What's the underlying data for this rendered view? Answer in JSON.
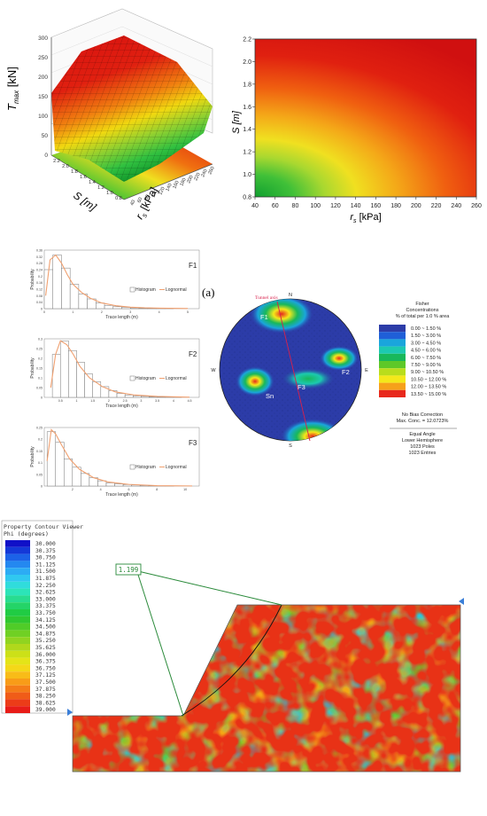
{
  "surface3d": {
    "zlabel": "T",
    "zlabel_sub": "max",
    "zlabel_unit": " [kN]",
    "xlabel": "r",
    "xlabel_sub": "s",
    "xlabel_unit": " [kPa]",
    "ylabel": "S [m]",
    "zticks": [
      "300",
      "250",
      "200",
      "150",
      "100",
      "50",
      "0"
    ],
    "xticks": [
      "40",
      "60",
      "80",
      "100",
      "120",
      "140",
      "160",
      "180",
      "200",
      "220",
      "240",
      "260"
    ],
    "yticks": [
      "2.2",
      "2.0",
      "1.8",
      "1.6",
      "1.4",
      "1.2",
      "1.0",
      "0.8"
    ]
  },
  "contour2d": {
    "xlabel": "r",
    "xlabel_sub": "s",
    "xlabel_unit": " [kPa]",
    "ylabel": "S [m]",
    "xticks": [
      "40",
      "60",
      "80",
      "100",
      "120",
      "140",
      "160",
      "180",
      "200",
      "220",
      "240",
      "260"
    ],
    "yticks": [
      "2.2",
      "2.0",
      "1.8",
      "1.6",
      "1.4",
      "1.2",
      "1.0",
      "0.8"
    ]
  },
  "histograms": [
    {
      "label": "F1",
      "ylabel": "Probability",
      "xlabel": "Trace length (m)",
      "yticks": [
        "0.36",
        "0.32",
        "0.28",
        "0.24",
        "0.2",
        "0.16",
        "0.12",
        "0.08",
        "0.04",
        "0"
      ],
      "xticks": [
        "0",
        "1",
        "2",
        "3",
        "4",
        "5"
      ],
      "legend_hist": "Histogram",
      "legend_line": "Lognormal"
    },
    {
      "label": "F2",
      "ylabel": "Probability",
      "xlabel": "Trace length (m)",
      "yticks": [
        "0.3",
        "0.25",
        "0.2",
        "0.15",
        "0.1",
        "0.05",
        "0"
      ],
      "xticks": [
        "0.5",
        "1",
        "1.5",
        "2",
        "2.5",
        "3",
        "3.5",
        "4",
        "4.5"
      ],
      "legend_hist": "Histogram",
      "legend_line": "Lognormal"
    },
    {
      "label": "F3",
      "ylabel": "Probability",
      "xlabel": "Trace length (m)",
      "yticks": [
        "0.25",
        "0.2",
        "0.15",
        "0.1",
        "0.05",
        "0"
      ],
      "xticks": [
        "2",
        "4",
        "6",
        "8",
        "10"
      ],
      "legend_hist": "Histogram",
      "legend_line": "Lognormal"
    }
  ],
  "stereonet": {
    "panel_label": "(a)",
    "tunnel_label": "Tunnel axis",
    "compass": {
      "n": "N",
      "e": "E",
      "s": "S",
      "w": "W"
    },
    "set_labels": [
      "F1",
      "F2",
      "F3",
      "Sn",
      "F1"
    ],
    "legend_title": [
      "Fisher",
      "Concentrations",
      "% of total per 1.0 % area"
    ],
    "legend_items": [
      {
        "label": "0.00 ~ 1.50 %",
        "color": "#2c3ca8"
      },
      {
        "label": "1.50 ~ 3.00 %",
        "color": "#1f5fd8"
      },
      {
        "label": "3.00 ~ 4.50 %",
        "color": "#1aa5dc"
      },
      {
        "label": "4.50 ~ 6.00 %",
        "color": "#1cc9b0"
      },
      {
        "label": "6.00 ~ 7.50 %",
        "color": "#18b85a"
      },
      {
        "label": "7.50 ~ 9.00 %",
        "color": "#5ec828"
      },
      {
        "label": "9.00 ~ 10.50 %",
        "color": "#b9dd1c"
      },
      {
        "label": "10.50 ~ 12.00 %",
        "color": "#f4e81a"
      },
      {
        "label": "12.00 ~ 13.50 %",
        "color": "#f6a11a"
      },
      {
        "label": "13.50 ~ 15.00 %",
        "color": "#e8281c"
      }
    ],
    "notes": [
      "No Bias Correction",
      "Max. Conc. = 12.0723%"
    ],
    "projection": [
      "Equal Angle",
      "Lower Hemisphere",
      "1023 Poles",
      "1023 Entries"
    ]
  },
  "contour_viewer": {
    "title": "Property Contour Viewer",
    "subtitle": "Phi (degrees)",
    "legend_values": [
      "30.000",
      "30.375",
      "30.750",
      "31.125",
      "31.500",
      "31.875",
      "32.250",
      "32.625",
      "33.000",
      "33.375",
      "33.750",
      "34.125",
      "34.500",
      "34.875",
      "35.250",
      "35.625",
      "36.000",
      "36.375",
      "36.750",
      "37.125",
      "37.500",
      "37.875",
      "38.250",
      "38.625",
      "39.000"
    ],
    "legend_colors": [
      "#1010c8",
      "#1438d8",
      "#1c62e8",
      "#2488f0",
      "#2cacf4",
      "#30c8f0",
      "#30dcdc",
      "#2ce4b8",
      "#28dc90",
      "#24d468",
      "#20cc44",
      "#30c830",
      "#50cc28",
      "#70d024",
      "#90d420",
      "#b0d81c",
      "#cce018",
      "#e4e418",
      "#f4d818",
      "#f8bc18",
      "#f89c18",
      "#f47c18",
      "#f05c18",
      "#ec3c18",
      "#e81c18"
    ],
    "factor_of_safety": "1.199"
  },
  "chart_data": [
    {
      "type": "heatmap",
      "title": "",
      "xlabel": "r_s [kPa]",
      "ylabel": "S [m]",
      "xlim": [
        40,
        260
      ],
      "ylim": [
        0.8,
        2.2
      ],
      "colormap": "green-yellow-red (low to high T_max)"
    },
    {
      "type": "bar",
      "title": "F1",
      "xlabel": "Trace length (m)",
      "ylabel": "Probability",
      "ylim": [
        0,
        0.36
      ],
      "xlim": [
        0,
        5.4
      ],
      "bin_width": 0.3,
      "bin_starts": [
        0,
        0.3,
        0.6,
        0.9,
        1.2,
        1.5,
        1.8,
        2.1,
        2.4,
        2.7,
        3.0,
        3.3,
        3.6,
        3.9,
        4.2,
        4.5,
        4.8,
        5.1
      ],
      "values": [
        0.24,
        0.33,
        0.25,
        0.15,
        0.09,
        0.06,
        0.035,
        0.02,
        0.012,
        0.008,
        0.005,
        0.003,
        0.002,
        0.001,
        0.001,
        0.0,
        0.0,
        0.0
      ],
      "series": [
        {
          "name": "Lognormal",
          "x": [
            0.05,
            0.2,
            0.4,
            0.6,
            0.8,
            1.0,
            1.3,
            1.6,
            2.0,
            2.5,
            3.0,
            3.5,
            4.0,
            5.0
          ],
          "y": [
            0.08,
            0.3,
            0.33,
            0.28,
            0.21,
            0.15,
            0.1,
            0.065,
            0.035,
            0.018,
            0.009,
            0.005,
            0.003,
            0.001
          ]
        }
      ]
    },
    {
      "type": "bar",
      "title": "F2",
      "xlabel": "Trace length (m)",
      "ylabel": "Probability",
      "ylim": [
        0,
        0.3
      ],
      "xlim": [
        0,
        4.8
      ],
      "bin_width": 0.25,
      "bin_starts": [
        0.25,
        0.5,
        0.75,
        1.0,
        1.25,
        1.5,
        1.75,
        2.0,
        2.25,
        2.5,
        2.75,
        3.0,
        3.25,
        3.5,
        3.75,
        4.0,
        4.25,
        4.5
      ],
      "values": [
        0.22,
        0.29,
        0.24,
        0.18,
        0.12,
        0.08,
        0.055,
        0.035,
        0.02,
        0.012,
        0.008,
        0.005,
        0.003,
        0.002,
        0.001,
        0.001,
        0.0,
        0.0
      ],
      "series": [
        {
          "name": "Lognormal",
          "x": [
            0.2,
            0.35,
            0.5,
            0.7,
            0.9,
            1.1,
            1.4,
            1.8,
            2.2,
            2.8,
            3.5,
            4.5
          ],
          "y": [
            0.05,
            0.22,
            0.29,
            0.27,
            0.22,
            0.16,
            0.1,
            0.055,
            0.028,
            0.012,
            0.005,
            0.001
          ]
        }
      ]
    },
    {
      "type": "bar",
      "title": "F3",
      "xlabel": "Trace length (m)",
      "ylabel": "Probability",
      "ylim": [
        0,
        0.28
      ],
      "xlim": [
        0,
        11
      ],
      "bin_width": 0.6,
      "bin_starts": [
        0.2,
        0.8,
        1.4,
        2.0,
        2.6,
        3.2,
        3.8,
        4.4,
        5.0,
        5.6,
        6.2,
        6.8,
        7.4,
        8.0,
        8.6,
        9.2,
        9.8
      ],
      "values": [
        0.26,
        0.21,
        0.13,
        0.09,
        0.06,
        0.04,
        0.025,
        0.015,
        0.01,
        0.007,
        0.005,
        0.003,
        0.002,
        0.001,
        0.001,
        0.0,
        0.0
      ],
      "series": [
        {
          "name": "Lognormal",
          "x": [
            0.2,
            0.5,
            0.8,
            1.2,
            1.8,
            2.5,
            3.5,
            4.5,
            6,
            8,
            10.5
          ],
          "y": [
            0.12,
            0.27,
            0.25,
            0.2,
            0.13,
            0.08,
            0.04,
            0.02,
            0.008,
            0.002,
            0.0005
          ]
        }
      ]
    }
  ]
}
